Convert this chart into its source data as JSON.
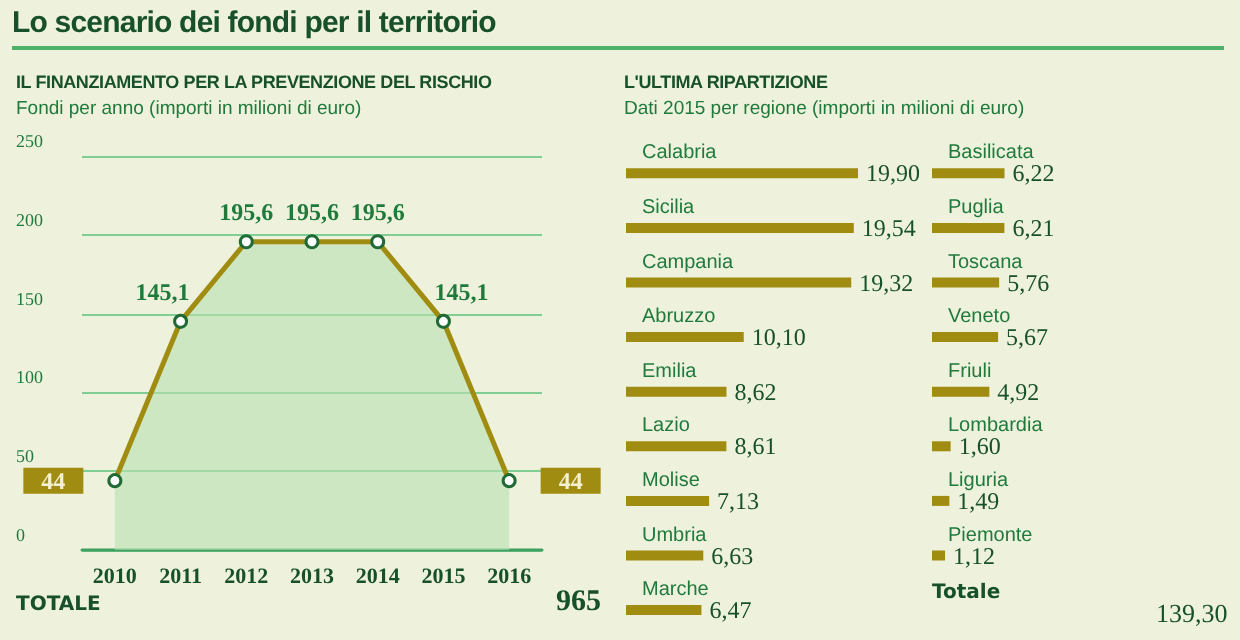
{
  "chart_data": [
    {
      "type": "area",
      "title": "IL FINANZIAMENTO PER LA PREVENZIONE DEL RISCHIO",
      "subtitle": "Fondi per anno (importi in milioni di euro)",
      "annotations": [
        "Lo scenario dei fondi per il territorio",
        "TOTALE",
        "965"
      ],
      "categories": [
        "2010",
        "2011",
        "2012",
        "2013",
        "2014",
        "2015",
        "2016"
      ],
      "series": [
        {
          "color": "#a08c10",
          "values": [
            44,
            145.1,
            195.6,
            195.6,
            195.6,
            145.1,
            44
          ],
          "value_labels": [
            "44",
            "145,1",
            "195,6",
            "195,6",
            "195,6",
            "145,1",
            "44"
          ]
        }
      ],
      "ylim": [
        0,
        250
      ],
      "yticks": [
        0,
        50,
        100,
        150,
        200,
        250
      ],
      "grid": "y",
      "marker": "circle"
    },
    {
      "type": "bar",
      "orientation": "horizontal",
      "title": "L'ULTIMA RIPARTIZIONE",
      "subtitle": "Dati 2015 per regione (importi in milioni di euro)",
      "categories": [
        "Calabria",
        "Sicilia",
        "Campania",
        "Abruzzo",
        "Emilia",
        "Lazio",
        "Molise",
        "Umbria",
        "Marche"
      ],
      "values": [
        19.9,
        19.54,
        19.32,
        10.1,
        8.62,
        8.61,
        7.13,
        6.63,
        6.47
      ],
      "value_labels": [
        "19,90",
        "19,54",
        "19,32",
        "10,10",
        "8,62",
        "8,61",
        "7,13",
        "6,63",
        "6,47"
      ],
      "color": "#a08c10",
      "tick_labels": "y"
    },
    {
      "type": "bar",
      "orientation": "horizontal",
      "annotations": [
        "Totale",
        "139,30"
      ],
      "categories": [
        "Basilicata",
        "Puglia",
        "Toscana",
        "Veneto",
        "Friuli",
        "Lombardia",
        "Liguria",
        "Piemonte"
      ],
      "values": [
        6.22,
        6.21,
        5.76,
        5.67,
        4.92,
        1.6,
        1.49,
        1.12
      ],
      "value_labels": [
        "6,22",
        "6,21",
        "5,76",
        "5,67",
        "4,92",
        "1,60",
        "1,49",
        "1,12"
      ],
      "color": "#a08c10",
      "tick_labels": "y"
    }
  ]
}
